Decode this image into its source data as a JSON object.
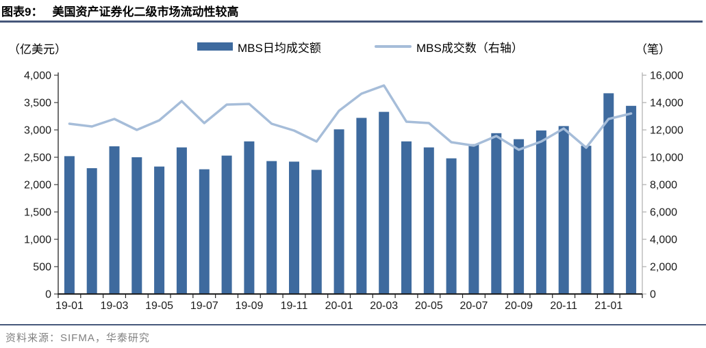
{
  "header": {
    "figure_label": "图表9：",
    "figure_title": "美国资产证券化二级市场流动性较高"
  },
  "legend": {
    "bar_label": "MBS日均成交额",
    "line_label": "MBS成交数（右轴）"
  },
  "axes": {
    "left_unit": "（亿美元）",
    "right_unit": "（笔）"
  },
  "footer": {
    "source": "资料来源：SIFMA，华泰研究"
  },
  "colors": {
    "bar": "#3E6A9E",
    "line": "#A6BDD9",
    "axis_dark": "#1F1F1F",
    "axis_left": "#404040",
    "axis_right": "#ADADAD",
    "title_rule": "#45577A",
    "footer_rule": "#45577A",
    "footer_text": "#808080"
  },
  "chart_data": {
    "type": "combo",
    "title": "美国资产证券化二级市场流动性较高",
    "gridlines": false,
    "legend_position": "top",
    "categories": [
      "19-01",
      "19-02",
      "19-03",
      "19-04",
      "19-05",
      "19-06",
      "19-07",
      "19-08",
      "19-09",
      "19-10",
      "19-11",
      "19-12",
      "20-01",
      "20-02",
      "20-03",
      "20-04",
      "20-05",
      "20-06",
      "20-07",
      "20-08",
      "20-09",
      "20-10",
      "20-11",
      "20-12",
      "21-01",
      "21-02"
    ],
    "series": [
      {
        "name": "MBS日均成交额",
        "type": "bar",
        "axis": "left",
        "color": "#3E6A9E",
        "values": [
          2520,
          2300,
          2700,
          2500,
          2330,
          2680,
          2280,
          2530,
          2790,
          2430,
          2420,
          2270,
          3010,
          3220,
          3330,
          2790,
          2680,
          2480,
          2740,
          2940,
          2830,
          2990,
          3070,
          2710,
          3670,
          3440
        ]
      },
      {
        "name": "MBS成交数（右轴）",
        "type": "line",
        "axis": "right",
        "color": "#A6BDD9",
        "values": [
          12450,
          12250,
          12800,
          12000,
          12700,
          14100,
          12500,
          13850,
          13900,
          12450,
          11950,
          11150,
          13400,
          14650,
          15250,
          12600,
          12500,
          11100,
          10850,
          11550,
          10550,
          11150,
          12100,
          10700,
          12800,
          13200
        ]
      }
    ],
    "left_axis": {
      "unit": "（亿美元）",
      "min": 0,
      "max": 4000,
      "tick_step": 500,
      "tick_labels": [
        "0",
        "500",
        "1,000",
        "1,500",
        "2,000",
        "2,500",
        "3,000",
        "3,500",
        "4,000"
      ]
    },
    "right_axis": {
      "unit": "（笔）",
      "min": 0,
      "max": 16000,
      "tick_step": 2000,
      "tick_labels": [
        "0",
        "2,000",
        "4,000",
        "6,000",
        "8,000",
        "10,000",
        "12,000",
        "14,000",
        "16,000"
      ]
    },
    "x_label_every": 2,
    "x_tick_labels": [
      "19-01",
      "19-03",
      "19-05",
      "19-07",
      "19-09",
      "19-11",
      "20-01",
      "20-03",
      "20-05",
      "20-07",
      "20-09",
      "20-11",
      "21-01"
    ]
  }
}
